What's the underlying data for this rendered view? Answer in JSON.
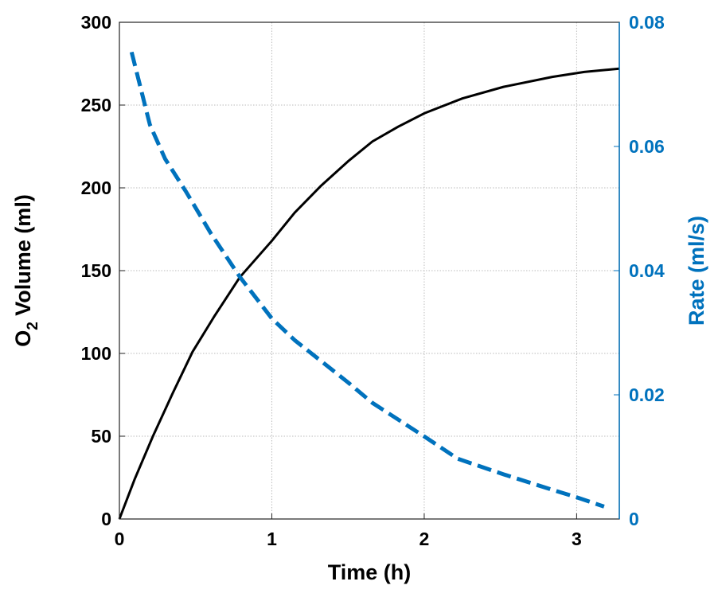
{
  "chart_data": {
    "type": "line",
    "title": "",
    "xlabel": "Time (h)",
    "ylabel": {
      "main": "O",
      "sub": "2",
      "rest": " Volume (ml)"
    },
    "y2label": "Rate (ml/s)",
    "xlim": [
      0,
      3.28
    ],
    "ylim": [
      0,
      300
    ],
    "y2lim": [
      0,
      0.08
    ],
    "xticks": [
      "0",
      "1",
      "2",
      "3"
    ],
    "xtick_values": [
      0,
      1,
      2,
      3
    ],
    "yticks": [
      "0",
      "50",
      "100",
      "150",
      "200",
      "250",
      "300"
    ],
    "ytick_values": [
      0,
      50,
      100,
      150,
      200,
      250,
      300
    ],
    "y2ticks": [
      "0",
      "0.02",
      "0.04",
      "0.06",
      "0.08"
    ],
    "y2tick_values": [
      0,
      0.02,
      0.04,
      0.06,
      0.08
    ],
    "grid": true,
    "colors": {
      "volume": "#000000",
      "rate": "#0072BD"
    },
    "series": [
      {
        "name": "O2 Volume",
        "axis": "left",
        "style": "solid",
        "x": [
          0,
          0.1,
          0.22,
          0.35,
          0.48,
          0.62,
          0.79,
          1.0,
          1.15,
          1.32,
          1.5,
          1.66,
          1.83,
          2.0,
          2.25,
          2.52,
          2.84,
          3.05,
          3.28
        ],
        "y": [
          0,
          24,
          50,
          76,
          101,
          122,
          146,
          168,
          185,
          201,
          216,
          228,
          237,
          245,
          254,
          261,
          267,
          270,
          272
        ]
      },
      {
        "name": "Rate",
        "axis": "right",
        "style": "dashed",
        "x": [
          0.08,
          0.2,
          0.3,
          0.44,
          0.6,
          0.79,
          1.0,
          1.15,
          1.32,
          1.5,
          1.66,
          1.83,
          2.0,
          2.22,
          2.52,
          2.84,
          3.0,
          3.18
        ],
        "y": [
          0.0752,
          0.0635,
          0.058,
          0.0526,
          0.046,
          0.039,
          0.0323,
          0.0288,
          0.0255,
          0.022,
          0.0187,
          0.016,
          0.0133,
          0.0097,
          0.0072,
          0.0047,
          0.0035,
          0.002
        ]
      }
    ]
  }
}
